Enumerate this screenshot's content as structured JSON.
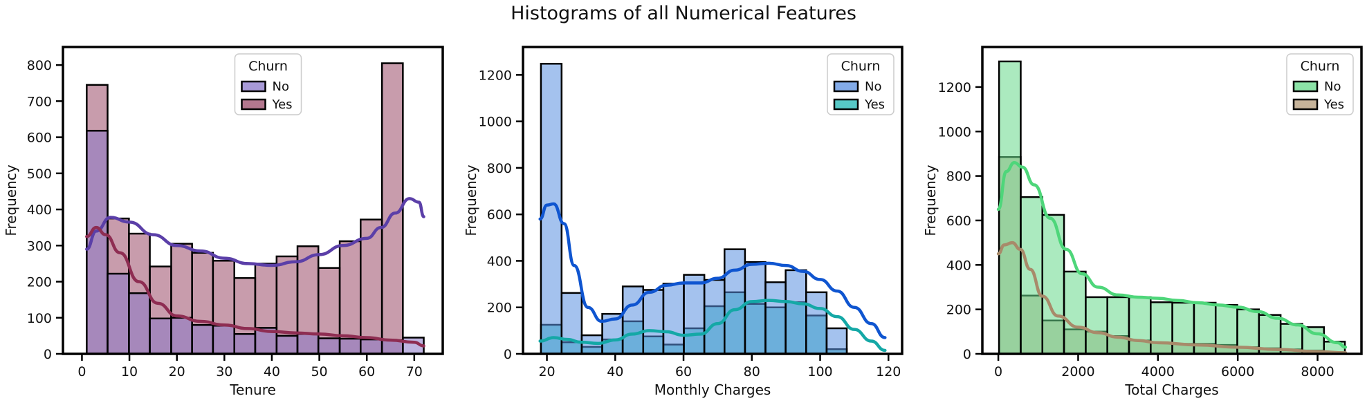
{
  "figure": {
    "title": "Histograms of all Numerical Features"
  },
  "colors": {
    "tenure_no": "#8b78c9",
    "tenure_yes": "#9a4a68",
    "tenure_no_kde": "#5b3fa8",
    "tenure_yes_kde": "#8e2d52",
    "monthly_no": "#5a8fe0",
    "monthly_yes": "#1fb5b3",
    "monthly_no_kde": "#0f55d0",
    "monthly_yes_kde": "#14a8a6",
    "total_no": "#66d98a",
    "total_yes": "#b39a78",
    "total_no_kde": "#4ed67a",
    "total_yes_kde": "#a88a6a"
  },
  "chart_data": [
    {
      "type": "bar",
      "subtype": "histogram",
      "xlabel": "Tenure",
      "ylabel": "Frequency",
      "xlim": [
        -4,
        76
      ],
      "ylim": [
        0,
        850
      ],
      "xticks": [
        0,
        10,
        20,
        30,
        40,
        50,
        60,
        70
      ],
      "yticks": [
        0,
        100,
        200,
        300,
        400,
        500,
        600,
        700,
        800
      ],
      "bin_edges": [
        1,
        5.4,
        9.9,
        14.3,
        18.8,
        23.2,
        27.6,
        32.1,
        36.5,
        41,
        45.4,
        49.8,
        54.3,
        58.7,
        63.2,
        67.6,
        72
      ],
      "legend_title": "Churn",
      "legend_position": "upper center",
      "series": [
        {
          "name": "No",
          "values": [
            618,
            222,
            168,
            98,
            100,
            80,
            78,
            55,
            72,
            50,
            55,
            43,
            42,
            40,
            38,
            45
          ],
          "kde_x": [
            1,
            3,
            6,
            10,
            15,
            20,
            25,
            30,
            35,
            40,
            45,
            50,
            55,
            60,
            63,
            66,
            69,
            71,
            72
          ],
          "kde_y": [
            290,
            340,
            378,
            365,
            330,
            300,
            285,
            265,
            250,
            245,
            255,
            275,
            300,
            320,
            350,
            390,
            430,
            420,
            380
          ]
        },
        {
          "name": "Yes",
          "values": [
            745,
            375,
            333,
            242,
            305,
            280,
            258,
            210,
            250,
            270,
            298,
            238,
            312,
            372,
            805,
            0
          ],
          "kde_x": [
            1,
            3,
            5,
            8,
            12,
            16,
            20,
            25,
            30,
            35,
            40,
            45,
            50,
            55,
            60,
            65,
            70,
            72
          ],
          "kde_y": [
            325,
            350,
            330,
            280,
            200,
            140,
            105,
            90,
            80,
            70,
            62,
            58,
            55,
            50,
            45,
            38,
            32,
            22
          ]
        }
      ]
    },
    {
      "type": "bar",
      "subtype": "histogram",
      "xlabel": "Monthly Charges",
      "ylabel": "Frequency",
      "xlim": [
        13,
        124
      ],
      "ylim": [
        0,
        1320
      ],
      "xticks": [
        20,
        40,
        60,
        80,
        100,
        120
      ],
      "yticks": [
        0,
        200,
        400,
        600,
        800,
        1000,
        1200
      ],
      "bin_edges": [
        18.25,
        24.3,
        30.2,
        36.2,
        42.2,
        48.2,
        54.1,
        60.1,
        66.1,
        72,
        78,
        84,
        89.9,
        95.9,
        101.9,
        107.8,
        113.8,
        118.75
      ],
      "legend_title": "Churn",
      "legend_position": "upper right",
      "series": [
        {
          "name": "No",
          "values": [
            1248,
            262,
            80,
            172,
            290,
            275,
            302,
            340,
            318,
            450,
            395,
            308,
            360,
            265,
            110,
            0
          ],
          "kde_x": [
            18,
            20,
            22,
            25,
            28,
            32,
            36,
            40,
            45,
            50,
            55,
            60,
            65,
            70,
            75,
            80,
            85,
            90,
            95,
            100,
            105,
            110,
            115,
            119
          ],
          "kde_y": [
            580,
            640,
            645,
            560,
            380,
            200,
            140,
            150,
            210,
            265,
            295,
            305,
            305,
            325,
            360,
            385,
            390,
            380,
            355,
            320,
            270,
            200,
            130,
            70
          ]
        },
        {
          "name": "Yes",
          "values": [
            125,
            50,
            30,
            62,
            140,
            75,
            40,
            110,
            205,
            265,
            215,
            200,
            222,
            165,
            20,
            0
          ],
          "kde_x": [
            18,
            22,
            26,
            30,
            35,
            40,
            45,
            50,
            55,
            60,
            65,
            70,
            75,
            80,
            85,
            90,
            95,
            100,
            105,
            110,
            115,
            119
          ],
          "kde_y": [
            55,
            70,
            62,
            50,
            45,
            60,
            85,
            100,
            95,
            80,
            85,
            130,
            190,
            225,
            230,
            225,
            215,
            195,
            160,
            105,
            55,
            15
          ]
        }
      ]
    },
    {
      "type": "bar",
      "subtype": "histogram",
      "xlabel": "Total Charges",
      "ylabel": "Frequency",
      "xlim": [
        -400,
        9100
      ],
      "ylim": [
        0,
        1380
      ],
      "xticks": [
        0,
        2000,
        4000,
        6000,
        8000
      ],
      "yticks": [
        0,
        200,
        400,
        600,
        800,
        1000,
        1200
      ],
      "bin_edges": [
        18.8,
        561.5,
        1104.2,
        1647,
        2189.7,
        2732.4,
        3275.1,
        3817.8,
        4360.6,
        4903.3,
        5446,
        5988.7,
        6531.4,
        7074.2,
        7616.9,
        8159.6,
        8684.8
      ],
      "legend_title": "Churn",
      "legend_position": "upper right",
      "series": [
        {
          "name": "No",
          "values": [
            1315,
            705,
            625,
            370,
            255,
            255,
            255,
            232,
            230,
            230,
            220,
            200,
            175,
            135,
            120,
            55
          ],
          "kde_x": [
            0,
            200,
            400,
            600,
            900,
            1300,
            1700,
            2100,
            2500,
            3000,
            3500,
            4000,
            4500,
            5000,
            5500,
            6000,
            6500,
            7000,
            7500,
            8000,
            8500,
            8700
          ],
          "kde_y": [
            650,
            820,
            860,
            840,
            760,
            610,
            470,
            360,
            300,
            265,
            255,
            250,
            240,
            230,
            220,
            210,
            190,
            160,
            130,
            90,
            50,
            30
          ]
        },
        {
          "name": "Yes",
          "values": [
            885,
            262,
            150,
            110,
            100,
            80,
            60,
            50,
            45,
            45,
            40,
            30,
            25,
            20,
            15,
            5
          ],
          "kde_x": [
            0,
            150,
            350,
            550,
            800,
            1100,
            1500,
            2000,
            2500,
            3000,
            3500,
            4000,
            5000,
            6000,
            7000,
            8000,
            8700
          ],
          "kde_y": [
            450,
            490,
            500,
            470,
            380,
            260,
            170,
            120,
            95,
            75,
            60,
            50,
            40,
            30,
            20,
            10,
            5
          ]
        }
      ]
    }
  ]
}
